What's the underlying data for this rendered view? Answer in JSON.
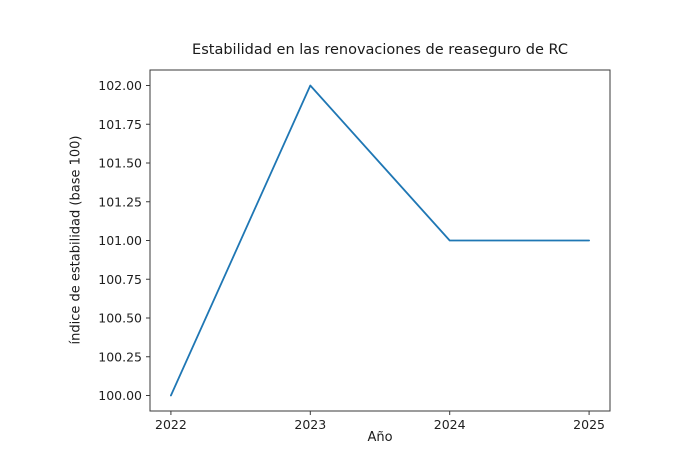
{
  "chart_data": {
    "type": "line",
    "title": "Estabilidad en las renovaciones de reaseguro de RC",
    "xlabel": "Año",
    "ylabel": "índice de estabilidad (base 100)",
    "x": [
      2022,
      2023,
      2024,
      2025
    ],
    "series": [
      {
        "name": "índice de estabilidad",
        "values": [
          100.0,
          102.0,
          101.0,
          101.0
        ],
        "color": "#1f77b4"
      }
    ],
    "xlim": [
      2022,
      2025
    ],
    "ylim": [
      100.0,
      102.0
    ],
    "x_ticks": [
      2022,
      2023,
      2024,
      2025
    ],
    "y_ticks": [
      100.0,
      100.25,
      100.5,
      100.75,
      101.0,
      101.25,
      101.5,
      101.75,
      102.0
    ],
    "y_tick_decimals": 2,
    "margin_fraction": 0.05,
    "grid": false,
    "legend": "none",
    "line_width": 1.8,
    "colors": {
      "line": "#1f77b4",
      "axis": "#3a3a3a",
      "text": "#1f1f1f",
      "background": "#ffffff"
    }
  }
}
